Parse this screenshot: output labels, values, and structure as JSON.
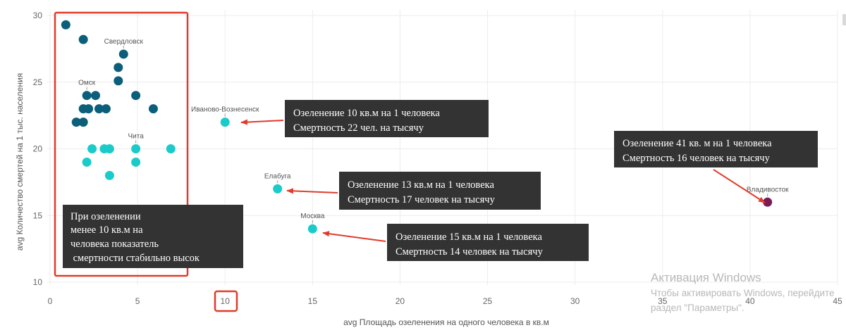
{
  "chart_data": {
    "type": "scatter",
    "xlabel": "avg Площадь озеленения на одного человека в кв.м",
    "ylabel": "avg Количество смертей на 1 тыс. населения",
    "xlim": [
      0,
      45
    ],
    "ylim": [
      10,
      30
    ],
    "x_ticks": [
      0,
      5,
      10,
      15,
      20,
      25,
      30,
      35,
      40,
      45
    ],
    "y_ticks": [
      10,
      15,
      20,
      25,
      30
    ],
    "grid": true,
    "highlighted_x_tick": 10,
    "colors": {
      "dark_teal": "#0b5f7a",
      "cyan": "#1bcbc9",
      "purple": "#7a1a56",
      "callout_bg": "#333333",
      "arrow": "#e03b2b",
      "highlight_box": "#e03b2b"
    },
    "points": [
      {
        "x": 0.9,
        "y": 29.3,
        "color": "dark_teal"
      },
      {
        "x": 1.9,
        "y": 28.2,
        "color": "dark_teal"
      },
      {
        "x": 4.2,
        "y": 27.1,
        "color": "dark_teal",
        "label": "Свердловск"
      },
      {
        "x": 3.9,
        "y": 26.1,
        "color": "dark_teal"
      },
      {
        "x": 3.9,
        "y": 25.1,
        "color": "dark_teal"
      },
      {
        "x": 2.1,
        "y": 24.0,
        "color": "dark_teal",
        "label": "Омск"
      },
      {
        "x": 2.6,
        "y": 24.0,
        "color": "dark_teal"
      },
      {
        "x": 4.9,
        "y": 24.0,
        "color": "dark_teal"
      },
      {
        "x": 1.9,
        "y": 23.0,
        "color": "dark_teal"
      },
      {
        "x": 2.2,
        "y": 23.0,
        "color": "dark_teal"
      },
      {
        "x": 2.8,
        "y": 23.0,
        "color": "dark_teal"
      },
      {
        "x": 3.2,
        "y": 23.0,
        "color": "dark_teal"
      },
      {
        "x": 5.9,
        "y": 23.0,
        "color": "dark_teal"
      },
      {
        "x": 1.5,
        "y": 22.0,
        "color": "dark_teal"
      },
      {
        "x": 1.9,
        "y": 22.0,
        "color": "dark_teal"
      },
      {
        "x": 10.0,
        "y": 22.0,
        "color": "cyan",
        "label": "Иваново-Вознесенск"
      },
      {
        "x": 2.4,
        "y": 20.0,
        "color": "cyan"
      },
      {
        "x": 3.1,
        "y": 20.0,
        "color": "cyan"
      },
      {
        "x": 3.4,
        "y": 20.0,
        "color": "cyan"
      },
      {
        "x": 4.9,
        "y": 20.0,
        "color": "cyan",
        "label": "Чита"
      },
      {
        "x": 6.9,
        "y": 20.0,
        "color": "cyan"
      },
      {
        "x": 2.1,
        "y": 19.0,
        "color": "cyan"
      },
      {
        "x": 4.9,
        "y": 19.0,
        "color": "cyan"
      },
      {
        "x": 3.4,
        "y": 18.0,
        "color": "cyan"
      },
      {
        "x": 13.0,
        "y": 17.0,
        "color": "cyan",
        "label": "Елабуга"
      },
      {
        "x": 15.0,
        "y": 14.0,
        "color": "cyan",
        "label": "Москва"
      },
      {
        "x": 41.0,
        "y": 16.0,
        "color": "purple",
        "label": "Владивосток"
      }
    ],
    "callouts": [
      {
        "lines": [
          "Озеленение 10 кв.м на 1 человека",
          "Смертность 22 чел. на тысячу"
        ],
        "target_x": 10.0,
        "target_y": 22.0
      },
      {
        "lines": [
          "Озеленение 13 кв.м на 1 человека",
          "Смертность 17 человек на тысячу"
        ],
        "target_x": 13.0,
        "target_y": 17.0
      },
      {
        "lines": [
          "Озеленение 15 кв.м на 1 человека",
          "Смертность 14 человек на тысячу"
        ],
        "target_x": 15.0,
        "target_y": 14.0
      },
      {
        "lines": [
          "Озеленение 41 кв. м на 1 человека",
          "Смертность 16 человек на тысячу"
        ],
        "target_x": 41.0,
        "target_y": 16.0
      },
      {
        "lines": [
          "При озеленении",
          "менее 10 кв.м на",
          "человека показатель",
          " смертности стабильно высок"
        ]
      }
    ]
  },
  "watermark": {
    "title": "Активация Windows",
    "line1": "Чтобы активировать Windows, перейдите",
    "line2": "раздел \"Параметры\"."
  }
}
